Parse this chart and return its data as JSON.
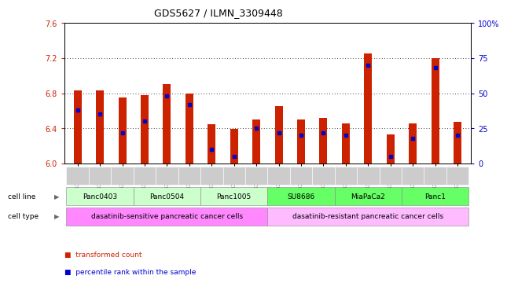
{
  "title": "GDS5627 / ILMN_3309448",
  "samples": [
    "GSM1435684",
    "GSM1435685",
    "GSM1435686",
    "GSM1435687",
    "GSM1435688",
    "GSM1435689",
    "GSM1435690",
    "GSM1435691",
    "GSM1435692",
    "GSM1435693",
    "GSM1435694",
    "GSM1435695",
    "GSM1435696",
    "GSM1435697",
    "GSM1435698",
    "GSM1435699",
    "GSM1435700",
    "GSM1435701"
  ],
  "transformed_count": [
    6.83,
    6.83,
    6.75,
    6.78,
    6.9,
    6.8,
    6.45,
    6.39,
    6.5,
    6.65,
    6.5,
    6.52,
    6.46,
    7.25,
    6.33,
    6.46,
    7.2,
    6.47
  ],
  "percentile_rank": [
    38,
    35,
    22,
    30,
    48,
    42,
    10,
    5,
    25,
    22,
    20,
    22,
    20,
    70,
    5,
    18,
    68,
    20
  ],
  "cell_lines": [
    {
      "name": "Panc0403",
      "start": 0,
      "end": 3,
      "color": "#ccffcc"
    },
    {
      "name": "Panc0504",
      "start": 3,
      "end": 6,
      "color": "#ccffcc"
    },
    {
      "name": "Panc1005",
      "start": 6,
      "end": 9,
      "color": "#ccffcc"
    },
    {
      "name": "SU8686",
      "start": 9,
      "end": 12,
      "color": "#66ff66"
    },
    {
      "name": "MiaPaCa2",
      "start": 12,
      "end": 15,
      "color": "#66ff66"
    },
    {
      "name": "Panc1",
      "start": 15,
      "end": 18,
      "color": "#66ff66"
    }
  ],
  "cell_types": [
    {
      "name": "dasatinib-sensitive pancreatic cancer cells",
      "start": 0,
      "end": 9,
      "color": "#ff88ff"
    },
    {
      "name": "dasatinib-resistant pancreatic cancer cells",
      "start": 9,
      "end": 18,
      "color": "#ffbbff"
    }
  ],
  "ylim_left": [
    6.0,
    7.6
  ],
  "ylim_right": [
    0,
    100
  ],
  "yticks_left": [
    6.0,
    6.4,
    6.8,
    7.2,
    7.6
  ],
  "yticks_right": [
    0,
    25,
    50,
    75,
    100
  ],
  "bar_color": "#cc2200",
  "dot_color": "#0000cc",
  "bar_base": 6.0,
  "grid_color": "#000000",
  "tick_color_left": "#cc2200",
  "tick_color_right": "#0000cc",
  "sample_row_color": "#cccccc"
}
